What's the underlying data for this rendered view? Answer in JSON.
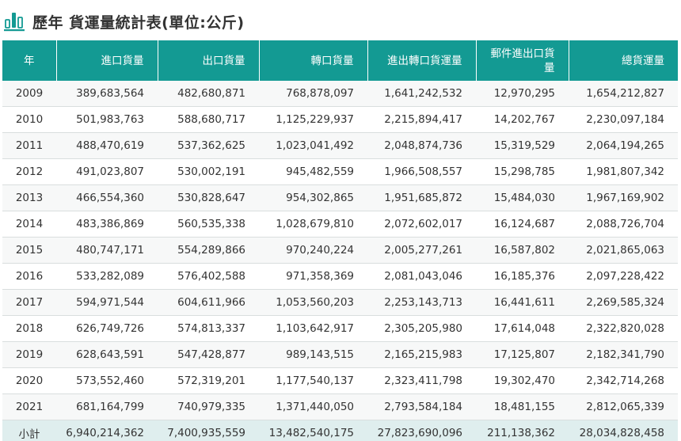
{
  "header": {
    "title": "歷年 貨運量統計表(單位:公斤)",
    "icon": "bar-chart-icon"
  },
  "colors": {
    "header_bg": "#139a93",
    "total_row_bg": "#dfeeee",
    "icon_teal": "#139a93"
  },
  "table": {
    "columns": [
      "年",
      "進口貨量",
      "出口貨量",
      "轉口貨量",
      "進出轉口貨運量",
      "郵件進出口貨量",
      "總貨運量"
    ],
    "rows": [
      [
        "2009",
        "389,683,564",
        "482,680,871",
        "768,878,097",
        "1,641,242,532",
        "12,970,295",
        "1,654,212,827"
      ],
      [
        "2010",
        "501,983,763",
        "588,680,717",
        "1,125,229,937",
        "2,215,894,417",
        "14,202,767",
        "2,230,097,184"
      ],
      [
        "2011",
        "488,470,619",
        "537,362,625",
        "1,023,041,492",
        "2,048,874,736",
        "15,319,529",
        "2,064,194,265"
      ],
      [
        "2012",
        "491,023,807",
        "530,002,191",
        "945,482,559",
        "1,966,508,557",
        "15,298,785",
        "1,981,807,342"
      ],
      [
        "2013",
        "466,554,360",
        "530,828,647",
        "954,302,865",
        "1,951,685,872",
        "15,484,030",
        "1,967,169,902"
      ],
      [
        "2014",
        "483,386,869",
        "560,535,338",
        "1,028,679,810",
        "2,072,602,017",
        "16,124,687",
        "2,088,726,704"
      ],
      [
        "2015",
        "480,747,171",
        "554,289,866",
        "970,240,224",
        "2,005,277,261",
        "16,587,802",
        "2,021,865,063"
      ],
      [
        "2016",
        "533,282,089",
        "576,402,588",
        "971,358,369",
        "2,081,043,046",
        "16,185,376",
        "2,097,228,422"
      ],
      [
        "2017",
        "594,971,544",
        "604,611,966",
        "1,053,560,203",
        "2,253,143,713",
        "16,441,611",
        "2,269,585,324"
      ],
      [
        "2018",
        "626,749,726",
        "574,813,337",
        "1,103,642,917",
        "2,305,205,980",
        "17,614,048",
        "2,322,820,028"
      ],
      [
        "2019",
        "628,643,591",
        "547,428,877",
        "989,143,515",
        "2,165,215,983",
        "17,125,807",
        "2,182,341,790"
      ],
      [
        "2020",
        "573,552,460",
        "572,319,201",
        "1,177,540,137",
        "2,323,411,798",
        "19,302,470",
        "2,342,714,268"
      ],
      [
        "2021",
        "681,164,799",
        "740,979,335",
        "1,371,440,050",
        "2,793,584,184",
        "18,481,155",
        "2,812,065,339"
      ]
    ],
    "total": [
      "小計",
      "6,940,214,362",
      "7,400,935,559",
      "13,482,540,175",
      "27,823,690,096",
      "211,138,362",
      "28,034,828,458"
    ]
  }
}
